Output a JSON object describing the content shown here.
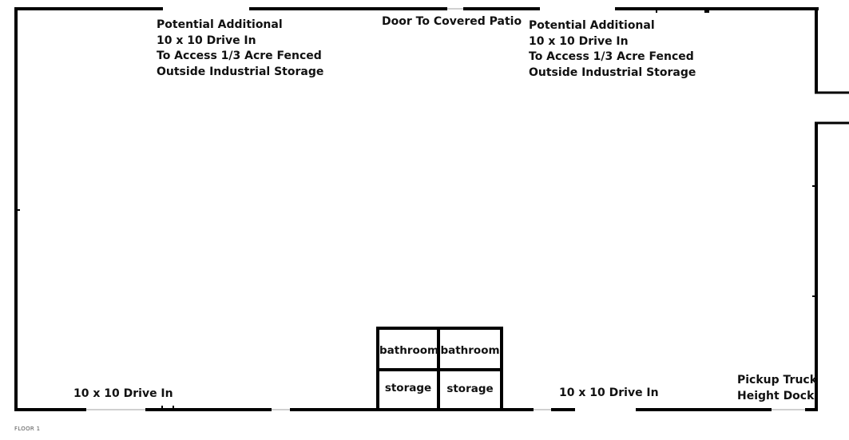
{
  "labels": {
    "top_left": [
      "Potential Additional",
      "10 x 10 Drive In",
      "To Access 1/3 Acre Fenced",
      "Outside Industrial Storage"
    ],
    "top_center": "Door To Covered Patio",
    "top_right": [
      "Potential Additional",
      "10 x 10 Drive In",
      "To Access 1/3 Acre Fenced",
      "Outside Industrial Storage"
    ],
    "bottom_left": "10 x 10 Drive In",
    "bottom_center_right": "10 x 10 Drive In",
    "bottom_right": [
      "Pickup Truck",
      "Height Dock"
    ]
  },
  "rooms": {
    "bathroom_left": "bathroom",
    "bathroom_right": "bathroom",
    "storage_left": "storage",
    "storage_right": "storage"
  },
  "floor_label": "FLOOR 1",
  "colors": {
    "wall": "#000000",
    "background": "#ffffff",
    "opening": "#d0d0d0"
  }
}
